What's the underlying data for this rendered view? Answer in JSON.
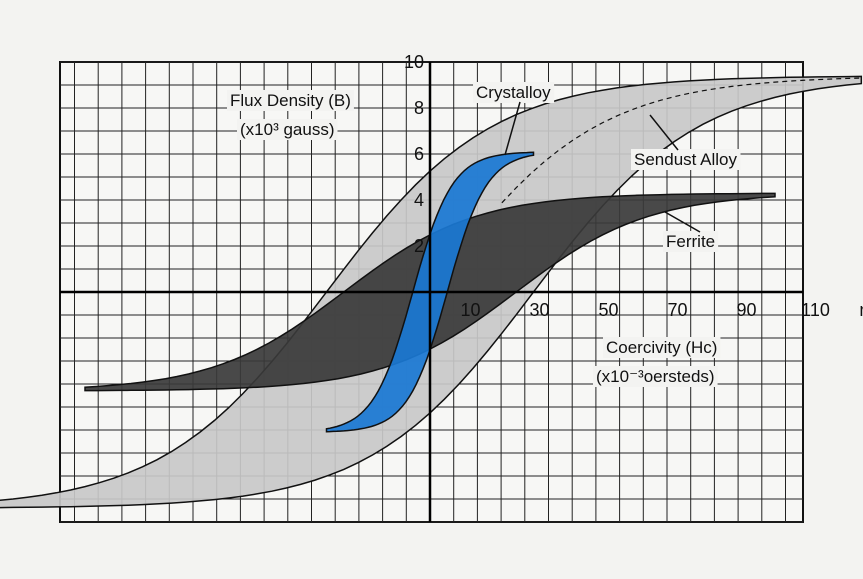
{
  "chart_data": {
    "type": "line",
    "title": "",
    "y_axis": {
      "label_line1": "Flux Density (B)",
      "label_line2": "(x10³ gauss)",
      "ticks": [
        "2",
        "4",
        "6",
        "8",
        "10"
      ],
      "range": [
        -10,
        10
      ]
    },
    "x_axis": {
      "label_line1": "Coercivity (Hc)",
      "label_line2": "(x10⁻³oersteds)",
      "ticks": [
        "10",
        "30",
        "50",
        "70",
        "90",
        "110",
        "mOe"
      ],
      "range": [
        -120,
        130
      ]
    },
    "grid": true,
    "series": [
      {
        "name": "Sendust Alloy",
        "color": "#c8c8c8",
        "coercivity": 30,
        "saturation": 9.4,
        "x_extent": 125,
        "curve_style": "dashed"
      },
      {
        "name": "Ferrite",
        "color": "#3a3a3a",
        "coercivity": 25,
        "saturation": 4.3,
        "x_extent": 100
      },
      {
        "name": "Crystalloy",
        "color": "#1a78d4",
        "coercivity": 5,
        "saturation": 6.1,
        "x_extent": 30
      }
    ]
  }
}
